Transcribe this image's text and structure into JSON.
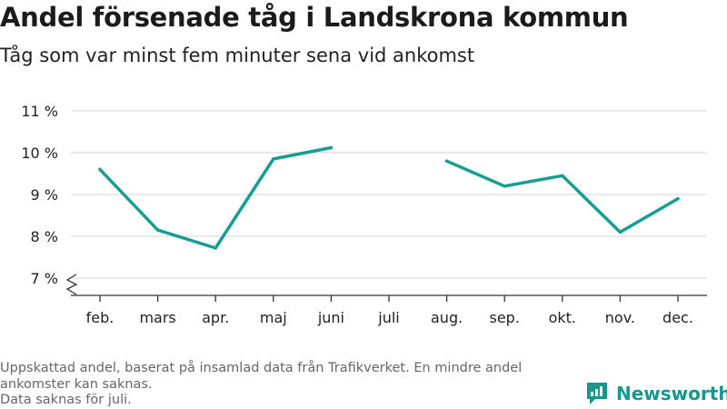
{
  "header": {
    "title": "Andel försenade tåg i Landskrona kommun",
    "subtitle": "Tåg som var minst fem minuter sena vid ankomst"
  },
  "footer": {
    "notes": [
      "Uppskattad andel, baserat på insamlad data från Trafikverket. En mindre andel",
      "ankomster kan saknas.",
      "Data saknas för juli."
    ],
    "brand": "Newsworthy"
  },
  "colors": {
    "line": "#169e94",
    "grid": "#dddddd",
    "axis": "#333333",
    "brand": "#15978d"
  },
  "chart_data": {
    "type": "line",
    "title": "Andel försenade tåg i Landskrona kommun",
    "subtitle": "Tåg som var minst fem minuter sena vid ankomst",
    "categories": [
      "feb.",
      "mars",
      "apr.",
      "maj",
      "juni",
      "juli",
      "aug.",
      "sep.",
      "okt.",
      "nov.",
      "dec."
    ],
    "series": [
      {
        "values": [
          9.6,
          8.15,
          7.72,
          9.85,
          10.12,
          null,
          9.8,
          9.2,
          9.45,
          8.1,
          8.9
        ]
      }
    ],
    "y_ticks": [
      7,
      8,
      9,
      10,
      11
    ],
    "y_tick_labels": [
      "7 %",
      "8 %",
      "9 %",
      "10 %",
      "11 %"
    ],
    "ylim": [
      7,
      11
    ],
    "y_axis_break": true,
    "grid": true,
    "legend": "none"
  }
}
